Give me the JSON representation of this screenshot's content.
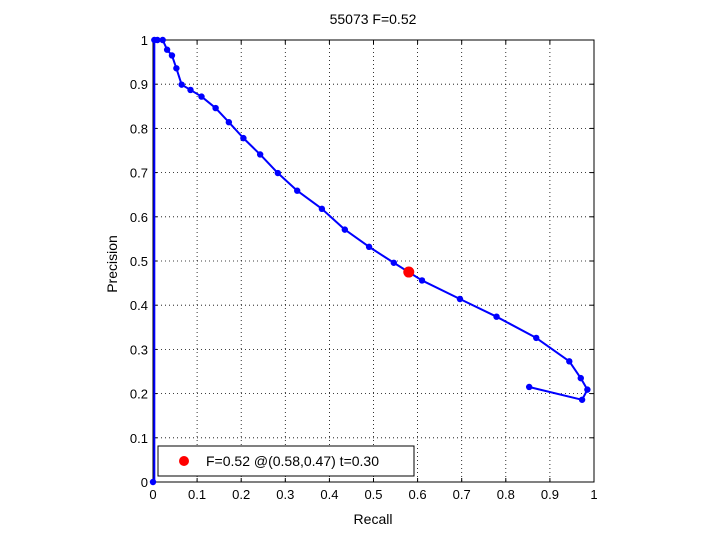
{
  "chart_data": {
    "type": "line",
    "title": "55073 F=0.52",
    "xlabel": "Recall",
    "ylabel": "Precision",
    "xlim": [
      0,
      1
    ],
    "ylim": [
      0,
      1
    ],
    "grid": true,
    "xticks": [
      "0",
      "0.1",
      "0.2",
      "0.3",
      "0.4",
      "0.5",
      "0.6",
      "0.7",
      "0.8",
      "0.9",
      "1"
    ],
    "yticks": [
      "0",
      "0.1",
      "0.2",
      "0.3",
      "0.4",
      "0.5",
      "0.6",
      "0.7",
      "0.8",
      "0.9",
      "1"
    ],
    "series": [
      {
        "color": "#0000ff",
        "marker": "dot",
        "points": [
          [
            0.003,
            1.0
          ],
          [
            0.01,
            1.0
          ],
          [
            0.022,
            1.0
          ],
          [
            0.032,
            0.978
          ],
          [
            0.043,
            0.965
          ],
          [
            0.053,
            0.936
          ],
          [
            0.065,
            0.899
          ],
          [
            0.085,
            0.887
          ],
          [
            0.11,
            0.872
          ],
          [
            0.142,
            0.846
          ],
          [
            0.172,
            0.814
          ],
          [
            0.205,
            0.778
          ],
          [
            0.243,
            0.741
          ],
          [
            0.283,
            0.699
          ],
          [
            0.327,
            0.659
          ],
          [
            0.383,
            0.618
          ],
          [
            0.435,
            0.571
          ],
          [
            0.49,
            0.532
          ],
          [
            0.546,
            0.496
          ],
          [
            0.61,
            0.456
          ],
          [
            0.696,
            0.414
          ],
          [
            0.779,
            0.374
          ],
          [
            0.869,
            0.326
          ],
          [
            0.944,
            0.273
          ],
          [
            0.97,
            0.235
          ],
          [
            0.985,
            0.209
          ],
          [
            0.973,
            0.186
          ],
          [
            0.853,
            0.215
          ]
        ]
      }
    ],
    "vertical_segment": {
      "x": 0.003,
      "y_from": 0.0,
      "y_to": 1.0,
      "color": "#0000ff"
    },
    "extra_points": [
      [
        0.0,
        0.0
      ]
    ],
    "highlight": {
      "x": 0.58,
      "y": 0.475,
      "color": "#ff0000"
    },
    "legend": {
      "placement": "bottom-left",
      "marker_color": "#ff0000",
      "text": "F=0.52 @(0.58,0.47) t=0.30"
    }
  }
}
